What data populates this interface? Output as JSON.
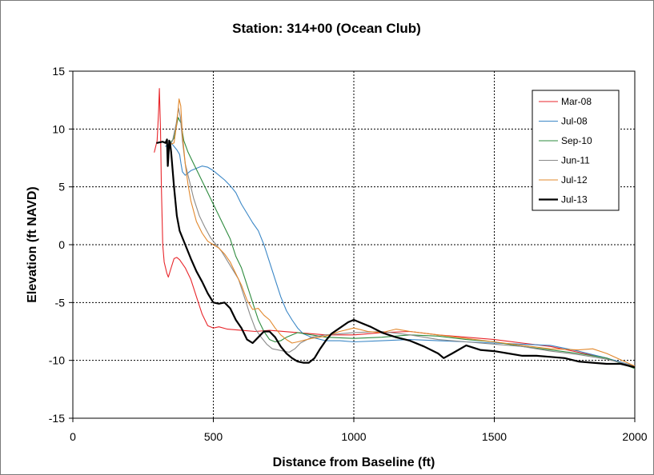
{
  "chart_data": {
    "type": "line",
    "title": "Station:  314+00  (Ocean Club)",
    "xlabel": "Distance from Baseline (ft)",
    "ylabel": "Elevation (ft NAVD)",
    "xlim": [
      0,
      2000
    ],
    "ylim": [
      -15,
      15
    ],
    "x_ticks": [
      0,
      500,
      1000,
      1500,
      2000
    ],
    "y_ticks": [
      15,
      10,
      5,
      0,
      -5,
      -10,
      -15
    ],
    "grid": true,
    "legend_position": "top-right",
    "series": [
      {
        "name": "Mar-08",
        "color": "#e8262b",
        "width": 1.1,
        "x": [
          290,
          300,
          305,
          308,
          312,
          315,
          320,
          325,
          330,
          335,
          340,
          350,
          360,
          370,
          380,
          400,
          420,
          440,
          460,
          480,
          500,
          520,
          550,
          600,
          650,
          700,
          800,
          900,
          1000,
          1100,
          1200,
          1300,
          1400,
          1500,
          1600,
          1700,
          1800,
          1900,
          2000
        ],
        "y": [
          8,
          9,
          11.5,
          13.5,
          10,
          5,
          0,
          -1.5,
          -2,
          -2.5,
          -2.8,
          -2,
          -1.2,
          -1.1,
          -1.3,
          -2,
          -3,
          -4.5,
          -6,
          -7,
          -7.2,
          -7.1,
          -7.3,
          -7.4,
          -7.5,
          -7.4,
          -7.6,
          -7.8,
          -7.8,
          -7.6,
          -7.5,
          -7.8,
          -8,
          -8.2,
          -8.5,
          -8.8,
          -9.3,
          -9.8,
          -10.6
        ]
      },
      {
        "name": "Jul-08",
        "color": "#3b87c6",
        "width": 1.1,
        "x": [
          330,
          350,
          370,
          380,
          385,
          390,
          400,
          410,
          420,
          440,
          460,
          480,
          500,
          520,
          540,
          560,
          580,
          600,
          620,
          640,
          660,
          680,
          700,
          720,
          740,
          760,
          780,
          800,
          820,
          850,
          900,
          950,
          1000,
          1100,
          1200,
          1300,
          1400,
          1500,
          1600,
          1700,
          1800,
          1900,
          2000
        ],
        "y": [
          8.5,
          8.8,
          8.2,
          7.8,
          7,
          6.3,
          6,
          6.2,
          6.4,
          6.6,
          6.8,
          6.7,
          6.4,
          6,
          5.6,
          5.1,
          4.5,
          3.5,
          2.7,
          1.9,
          1.2,
          0,
          -1.5,
          -3,
          -4.5,
          -5.7,
          -6.5,
          -7.2,
          -7.7,
          -8,
          -8.3,
          -8.3,
          -8.4,
          -8.3,
          -8.2,
          -8.3,
          -8.4,
          -8.5,
          -8.6,
          -8.7,
          -9.2,
          -9.8,
          -10.5
        ]
      },
      {
        "name": "Sep-10",
        "color": "#2e8b3e",
        "width": 1.1,
        "x": [
          340,
          360,
          375,
          385,
          395,
          410,
          430,
          450,
          480,
          500,
          520,
          540,
          560,
          580,
          600,
          620,
          640,
          660,
          680,
          700,
          720,
          740,
          760,
          800,
          850,
          900,
          1000,
          1100,
          1200,
          1300,
          1400,
          1500,
          1600,
          1700,
          1800,
          1900,
          2000
        ],
        "y": [
          8.6,
          9.2,
          11,
          10.5,
          9,
          8,
          7,
          6,
          4.5,
          3.5,
          2.5,
          1.5,
          0.5,
          -1,
          -2,
          -3.5,
          -5,
          -6.5,
          -7.5,
          -8.2,
          -8.4,
          -8.3,
          -8,
          -7.6,
          -7.8,
          -8,
          -8.1,
          -8,
          -7.8,
          -7.9,
          -8.2,
          -8.4,
          -8.8,
          -9.1,
          -9.4,
          -9.8,
          -10.7
        ]
      },
      {
        "name": "Jun-11",
        "color": "#8a8a8a",
        "width": 1.1,
        "x": [
          340,
          355,
          368,
          376,
          383,
          390,
          400,
          415,
          430,
          450,
          470,
          490,
          510,
          530,
          550,
          570,
          590,
          610,
          630,
          650,
          670,
          690,
          710,
          730,
          750,
          770,
          790,
          810,
          850,
          900,
          1000,
          1100,
          1200,
          1300,
          1400,
          1500,
          1600,
          1700,
          1800,
          1900,
          2000
        ],
        "y": [
          8.4,
          9,
          10.5,
          11.8,
          11,
          9,
          7,
          5.5,
          4,
          2.5,
          1.5,
          0.6,
          0,
          -0.6,
          -1.4,
          -2.2,
          -3,
          -4.5,
          -6,
          -7.3,
          -8,
          -8.6,
          -9,
          -9.1,
          -9.2,
          -9.3,
          -9,
          -8.5,
          -8,
          -7.8,
          -7.6,
          -7.5,
          -7.8,
          -8.2,
          -8.4,
          -8.6,
          -8.8,
          -9.2,
          -9.5,
          -9.9,
          -10.5
        ]
      },
      {
        "name": "Jul-12",
        "color": "#e2882c",
        "width": 1.1,
        "x": [
          340,
          360,
          370,
          378,
          384,
          390,
          400,
          410,
          420,
          440,
          460,
          480,
          500,
          520,
          540,
          560,
          580,
          600,
          620,
          640,
          660,
          680,
          700,
          720,
          740,
          760,
          780,
          800,
          850,
          900,
          950,
          1000,
          1050,
          1100,
          1150,
          1200,
          1300,
          1400,
          1500,
          1600,
          1700,
          1800,
          1850,
          1900,
          2000
        ],
        "y": [
          8.6,
          8.8,
          10.5,
          12.6,
          12,
          9.5,
          7,
          5.2,
          3.8,
          2,
          1,
          0.3,
          0,
          -0.3,
          -0.8,
          -1.5,
          -2.5,
          -3.5,
          -4.8,
          -5.6,
          -5.5,
          -6.1,
          -6.5,
          -7.2,
          -7.8,
          -8.2,
          -8.5,
          -8.4,
          -8.1,
          -7.9,
          -7.5,
          -7.2,
          -7.5,
          -7.6,
          -7.3,
          -7.5,
          -7.8,
          -8.1,
          -8.4,
          -8.7,
          -9,
          -9.1,
          -9,
          -9.4,
          -10.5
        ]
      },
      {
        "name": "Jul-13",
        "color": "#000000",
        "width": 2.2,
        "x": [
          300,
          320,
          330,
          335,
          338,
          340,
          343,
          346,
          350,
          360,
          370,
          380,
          400,
          420,
          440,
          460,
          480,
          500,
          520,
          540,
          560,
          580,
          600,
          620,
          640,
          660,
          680,
          700,
          720,
          740,
          760,
          780,
          800,
          820,
          840,
          860,
          880,
          900,
          920,
          950,
          980,
          1000,
          1030,
          1060,
          1100,
          1150,
          1200,
          1250,
          1300,
          1320,
          1350,
          1400,
          1450,
          1500,
          1550,
          1600,
          1650,
          1700,
          1750,
          1800,
          1850,
          1900,
          1950,
          2000
        ],
        "y": [
          8.8,
          8.9,
          8.8,
          9.1,
          6.8,
          7.5,
          9,
          8.8,
          8,
          5,
          2.5,
          1.2,
          0,
          -1.2,
          -2.3,
          -3.2,
          -4.2,
          -5,
          -5.1,
          -5,
          -5.5,
          -6.5,
          -7.2,
          -8.2,
          -8.5,
          -8,
          -7.5,
          -7.5,
          -8,
          -8.8,
          -9.4,
          -9.8,
          -10.1,
          -10.2,
          -10.2,
          -9.8,
          -9,
          -8.3,
          -7.7,
          -7.2,
          -6.7,
          -6.5,
          -6.8,
          -7.1,
          -7.6,
          -8,
          -8.3,
          -8.8,
          -9.4,
          -9.8,
          -9.4,
          -8.7,
          -9.1,
          -9.2,
          -9.4,
          -9.6,
          -9.6,
          -9.7,
          -9.8,
          -10.1,
          -10.2,
          -10.3,
          -10.3,
          -10.6
        ]
      }
    ]
  }
}
